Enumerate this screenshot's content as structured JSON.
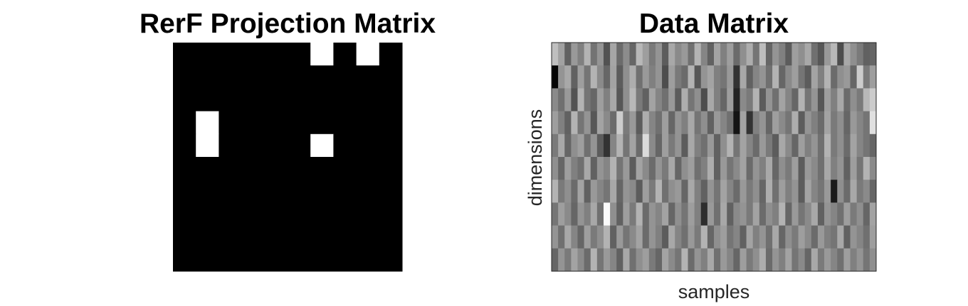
{
  "chart_data": [
    {
      "type": "heatmap",
      "title": "RerF Projection Matrix",
      "xlabel": "",
      "ylabel": "",
      "rows": 10,
      "cols": 10,
      "colormap": "binary",
      "colors": {
        "zero": "#000000",
        "one": "#ffffff"
      },
      "values": [
        [
          0,
          0,
          0,
          0,
          0,
          0,
          1,
          0,
          1,
          0
        ],
        [
          0,
          0,
          0,
          0,
          0,
          0,
          0,
          0,
          0,
          0
        ],
        [
          0,
          0,
          0,
          0,
          0,
          0,
          0,
          0,
          0,
          0
        ],
        [
          0,
          1,
          0,
          0,
          0,
          0,
          0,
          0,
          0,
          0
        ],
        [
          0,
          1,
          0,
          0,
          0,
          0,
          1,
          0,
          0,
          0
        ],
        [
          0,
          0,
          0,
          0,
          0,
          0,
          0,
          0,
          0,
          0
        ],
        [
          0,
          0,
          0,
          0,
          0,
          0,
          0,
          0,
          0,
          0
        ],
        [
          0,
          0,
          0,
          0,
          0,
          0,
          0,
          0,
          0,
          0
        ],
        [
          0,
          0,
          0,
          0,
          0,
          0,
          0,
          0,
          0,
          0
        ],
        [
          0,
          0,
          0,
          0,
          0,
          0,
          0,
          0,
          0,
          0
        ]
      ]
    },
    {
      "type": "heatmap",
      "title": "Data Matrix",
      "xlabel": "samples",
      "ylabel": "dimensions",
      "rows": 10,
      "cols": 50,
      "colormap": "gray",
      "value_range": [
        0,
        1
      ],
      "values": [
        [
          0.75,
          0.63,
          0.38,
          0.6,
          0.5,
          0.7,
          0.45,
          0.58,
          0.32,
          0.65,
          0.42,
          0.55,
          0.4,
          0.72,
          0.62,
          0.48,
          0.58,
          0.36,
          0.66,
          0.54,
          0.6,
          0.44,
          0.7,
          0.52,
          0.38,
          0.64,
          0.5,
          0.62,
          0.42,
          0.56,
          0.68,
          0.46,
          0.74,
          0.4,
          0.58,
          0.5,
          0.36,
          0.62,
          0.56,
          0.66,
          0.44,
          0.34,
          0.6,
          0.72,
          0.3,
          0.66,
          0.56,
          0.48,
          0.38,
          0.4
        ],
        [
          0.02,
          0.58,
          0.66,
          0.38,
          0.62,
          0.46,
          0.7,
          0.54,
          0.4,
          0.64,
          0.36,
          0.56,
          0.68,
          0.44,
          0.6,
          0.5,
          0.58,
          0.3,
          0.62,
          0.48,
          0.42,
          0.7,
          0.34,
          0.58,
          0.64,
          0.5,
          0.46,
          0.6,
          0.2,
          0.66,
          0.38,
          0.52,
          0.58,
          0.44,
          0.7,
          0.4,
          0.54,
          0.62,
          0.46,
          0.36,
          0.64,
          0.5,
          0.7,
          0.42,
          0.56,
          0.6,
          0.4,
          0.8,
          0.48,
          0.62
        ],
        [
          0.54,
          0.44,
          0.6,
          0.32,
          0.7,
          0.46,
          0.4,
          0.62,
          0.5,
          0.66,
          0.34,
          0.56,
          0.72,
          0.48,
          0.38,
          0.64,
          0.52,
          0.44,
          0.6,
          0.36,
          0.68,
          0.46,
          0.56,
          0.3,
          0.66,
          0.5,
          0.4,
          0.62,
          0.14,
          0.54,
          0.48,
          0.7,
          0.36,
          0.58,
          0.44,
          0.64,
          0.52,
          0.4,
          0.7,
          0.46,
          0.58,
          0.34,
          0.62,
          0.5,
          0.66,
          0.42,
          0.56,
          0.48,
          0.72,
          0.8
        ],
        [
          0.62,
          0.5,
          0.38,
          0.7,
          0.46,
          0.58,
          0.34,
          0.64,
          0.54,
          0.42,
          0.8,
          0.48,
          0.6,
          0.36,
          0.68,
          0.52,
          0.44,
          0.62,
          0.4,
          0.58,
          0.5,
          0.66,
          0.46,
          0.56,
          0.38,
          0.6,
          0.52,
          0.44,
          0.08,
          0.64,
          0.2,
          0.5,
          0.58,
          0.4,
          0.62,
          0.54,
          0.46,
          0.68,
          0.36,
          0.58,
          0.5,
          0.42,
          0.64,
          0.48,
          0.56,
          0.4,
          0.6,
          0.52,
          0.46,
          0.88
        ],
        [
          0.48,
          0.66,
          0.4,
          0.56,
          0.62,
          0.44,
          0.58,
          0.36,
          0.2,
          0.52,
          0.7,
          0.46,
          0.64,
          0.42,
          0.86,
          0.54,
          0.4,
          0.62,
          0.48,
          0.58,
          0.36,
          0.66,
          0.5,
          0.44,
          0.6,
          0.38,
          0.56,
          0.7,
          0.46,
          0.64,
          0.52,
          0.42,
          0.6,
          0.48,
          0.36,
          0.66,
          0.54,
          0.4,
          0.62,
          0.5,
          0.58,
          0.44,
          0.7,
          0.48,
          0.56,
          0.42,
          0.64,
          0.52,
          0.46,
          0.4
        ],
        [
          0.56,
          0.4,
          0.62,
          0.5,
          0.44,
          0.66,
          0.38,
          0.58,
          0.52,
          0.7,
          0.46,
          0.6,
          0.36,
          0.64,
          0.54,
          0.42,
          0.58,
          0.48,
          0.66,
          0.4,
          0.56,
          0.62,
          0.44,
          0.5,
          0.68,
          0.38,
          0.6,
          0.46,
          0.54,
          0.64,
          0.42,
          0.58,
          0.5,
          0.66,
          0.4,
          0.56,
          0.48,
          0.62,
          0.36,
          0.6,
          0.54,
          0.44,
          0.66,
          0.5,
          0.58,
          0.38,
          0.62,
          0.46,
          0.7,
          0.54
        ],
        [
          0.7,
          0.48,
          0.56,
          0.42,
          0.64,
          0.38,
          0.6,
          0.52,
          0.46,
          0.66,
          0.4,
          0.58,
          0.54,
          0.36,
          0.62,
          0.48,
          0.7,
          0.44,
          0.56,
          0.6,
          0.4,
          0.66,
          0.5,
          0.38,
          0.58,
          0.46,
          0.64,
          0.52,
          0.42,
          0.6,
          0.48,
          0.56,
          0.4,
          0.68,
          0.44,
          0.62,
          0.5,
          0.58,
          0.36,
          0.64,
          0.52,
          0.46,
          0.6,
          0.1,
          0.56,
          0.42,
          0.66,
          0.48,
          0.54,
          0.4
        ],
        [
          0.46,
          0.62,
          0.54,
          0.4,
          0.58,
          0.5,
          0.66,
          0.44,
          0.98,
          0.56,
          0.38,
          0.62,
          0.48,
          0.7,
          0.42,
          0.58,
          0.52,
          0.64,
          0.4,
          0.56,
          0.46,
          0.62,
          0.5,
          0.18,
          0.6,
          0.44,
          0.66,
          0.38,
          0.54,
          0.58,
          0.48,
          0.64,
          0.42,
          0.56,
          0.5,
          0.7,
          0.4,
          0.6,
          0.46,
          0.54,
          0.66,
          0.38,
          0.58,
          0.52,
          0.44,
          0.62,
          0.48,
          0.56,
          0.4,
          0.64
        ],
        [
          0.58,
          0.44,
          0.66,
          0.52,
          0.4,
          0.62,
          0.48,
          0.56,
          0.7,
          0.38,
          0.6,
          0.46,
          0.54,
          0.64,
          0.42,
          0.58,
          0.5,
          0.36,
          0.66,
          0.52,
          0.44,
          0.6,
          0.48,
          0.7,
          0.4,
          0.56,
          0.62,
          0.46,
          0.52,
          0.38,
          0.64,
          0.5,
          0.58,
          0.44,
          0.66,
          0.4,
          0.56,
          0.48,
          0.62,
          0.54,
          0.42,
          0.6,
          0.5,
          0.46,
          0.66,
          0.38,
          0.58,
          0.52,
          0.44,
          0.62
        ],
        [
          0.4,
          0.58,
          0.48,
          0.64,
          0.54,
          0.42,
          0.7,
          0.46,
          0.6,
          0.52,
          0.38,
          0.66,
          0.44,
          0.56,
          0.62,
          0.48,
          0.4,
          0.64,
          0.54,
          0.46,
          0.7,
          0.42,
          0.58,
          0.5,
          0.66,
          0.44,
          0.6,
          0.52,
          0.4,
          0.62,
          0.48,
          0.56,
          0.68,
          0.42,
          0.58,
          0.5,
          0.64,
          0.46,
          0.54,
          0.4,
          0.66,
          0.48,
          0.6,
          0.52,
          0.44,
          0.62,
          0.5,
          0.58,
          0.46,
          0.56
        ]
      ]
    }
  ]
}
